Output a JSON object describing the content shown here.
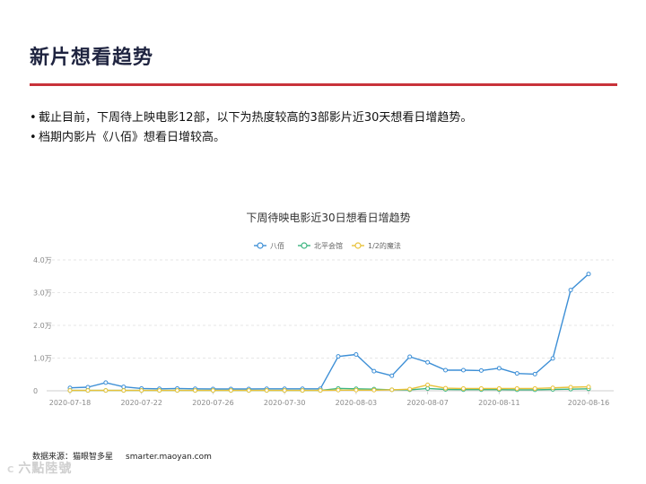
{
  "page": {
    "title": "新片想看趋势",
    "bullets": [
      "截止目前，下周待上映电影12部，以下为热度较高的3部影片近30天想看日增趋势。",
      "档期内影片《八佰》想看日增较高。"
    ],
    "source_label": "数据来源：猫眼智多星",
    "source_url": "smarter.maoyan.com",
    "watermark": "六點陸號",
    "watermark_icon": "C"
  },
  "chart_data": {
    "type": "line",
    "title": "下周待映电影近30日想看日增趋势",
    "x": [
      "2020-07-18",
      "2020-07-19",
      "2020-07-20",
      "2020-07-21",
      "2020-07-22",
      "2020-07-23",
      "2020-07-24",
      "2020-07-25",
      "2020-07-26",
      "2020-07-27",
      "2020-07-28",
      "2020-07-29",
      "2020-07-30",
      "2020-07-31",
      "2020-08-01",
      "2020-08-02",
      "2020-08-03",
      "2020-08-04",
      "2020-08-05",
      "2020-08-06",
      "2020-08-07",
      "2020-08-08",
      "2020-08-09",
      "2020-08-10",
      "2020-08-11",
      "2020-08-12",
      "2020-08-13",
      "2020-08-14",
      "2020-08-15",
      "2020-08-16"
    ],
    "x_tick_labels": [
      "2020-07-18",
      "2020-07-22",
      "2020-07-26",
      "2020-07-30",
      "2020-08-03",
      "2020-08-07",
      "2020-08-11",
      "2020-08-16"
    ],
    "y_ticks": [
      0,
      10000,
      20000,
      30000,
      40000
    ],
    "y_tick_labels": [
      "0",
      "1.0万",
      "2.0万",
      "3.0万",
      "4.0万"
    ],
    "ylim": [
      0,
      40000
    ],
    "grid": true,
    "legend_position": "top-center",
    "series": [
      {
        "name": "八佰",
        "color": "#3d8fd6",
        "values": [
          900,
          1100,
          2500,
          1200,
          700,
          600,
          700,
          600,
          550,
          550,
          550,
          600,
          600,
          600,
          600,
          10500,
          11100,
          6000,
          4600,
          10400,
          8700,
          6300,
          6300,
          6200,
          6900,
          5300,
          5100,
          9900,
          30800,
          35700
        ]
      },
      {
        "name": "北平会馆",
        "color": "#3cb580",
        "values": [
          100,
          100,
          100,
          100,
          100,
          100,
          100,
          100,
          100,
          100,
          100,
          100,
          100,
          100,
          100,
          700,
          600,
          500,
          300,
          300,
          700,
          400,
          350,
          350,
          350,
          300,
          300,
          400,
          500,
          600
        ]
      },
      {
        "name": "1/2的魔法",
        "color": "#e8c23a",
        "values": [
          100,
          100,
          100,
          100,
          100,
          100,
          100,
          100,
          100,
          100,
          100,
          100,
          100,
          100,
          100,
          200,
          200,
          200,
          300,
          500,
          1800,
          800,
          700,
          700,
          700,
          700,
          700,
          900,
          1100,
          1200
        ]
      }
    ]
  }
}
